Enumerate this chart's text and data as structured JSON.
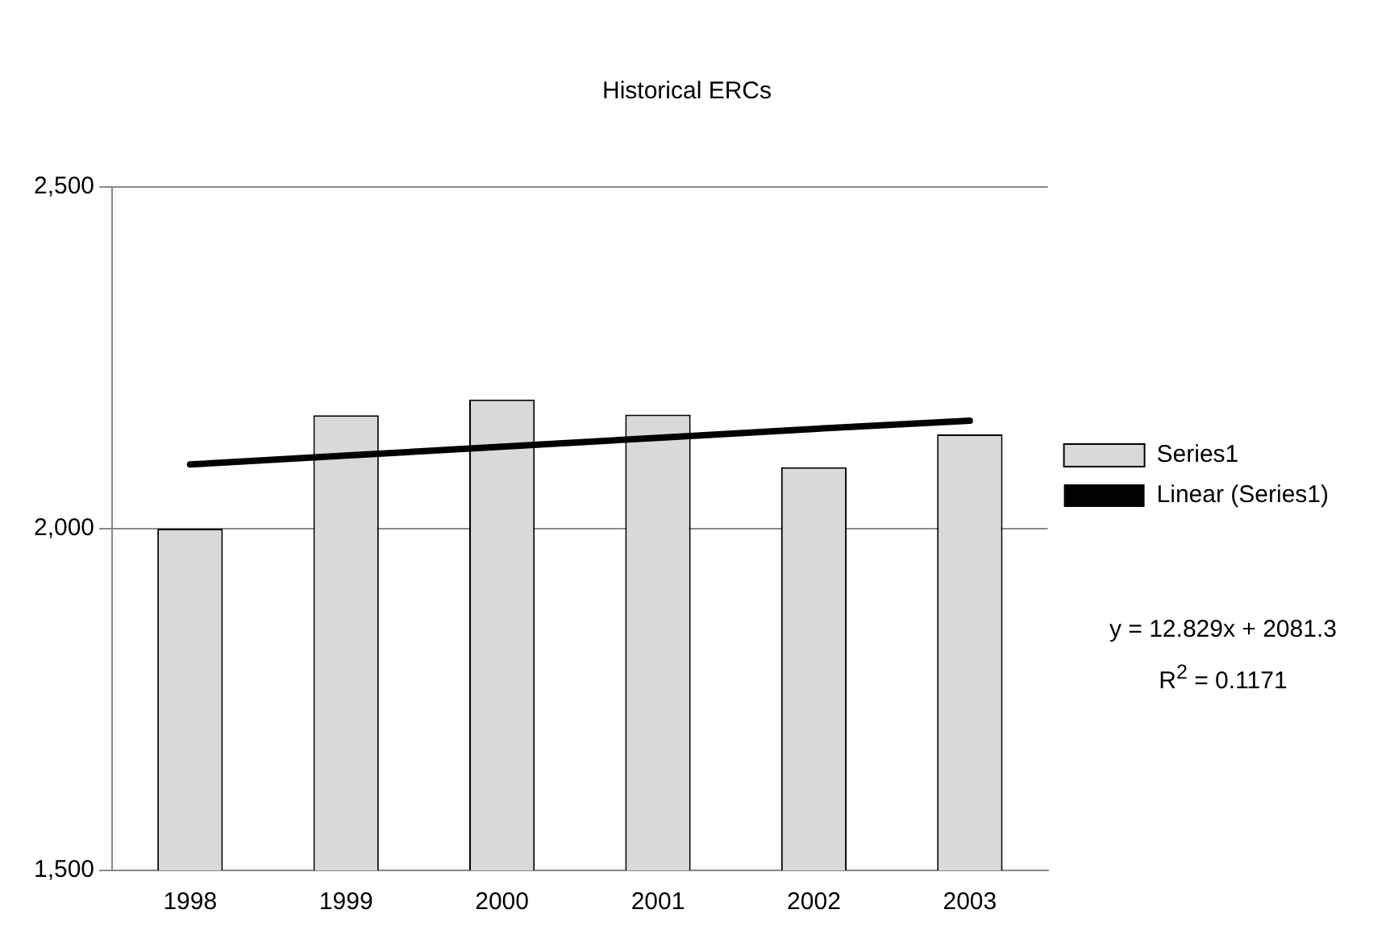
{
  "chart_data": {
    "type": "bar",
    "title": "Historical ERCs",
    "categories": [
      "1998",
      "1999",
      "2000",
      "2001",
      "2002",
      "2003"
    ],
    "series": [
      {
        "name": "Series1",
        "color": "#d9d9d9",
        "values": [
          2000,
          2166,
          2189,
          2167,
          2090,
          2138
        ]
      },
      {
        "name": "Linear (Series1)",
        "type": "line",
        "color": "#000000",
        "values": [
          2094,
          2107,
          2120,
          2133,
          2146,
          2158
        ]
      }
    ],
    "ylim": [
      1500,
      2500
    ],
    "yticks": [
      {
        "value": 1500,
        "label": "1,500"
      },
      {
        "value": 2000,
        "label": "2,000"
      },
      {
        "value": 2500,
        "label": "2,500"
      }
    ],
    "grid": "y",
    "legend": "right",
    "annotations": [
      "y = 12.829x + 2081.3",
      "R$^{2}$ = 0.1171"
    ]
  }
}
